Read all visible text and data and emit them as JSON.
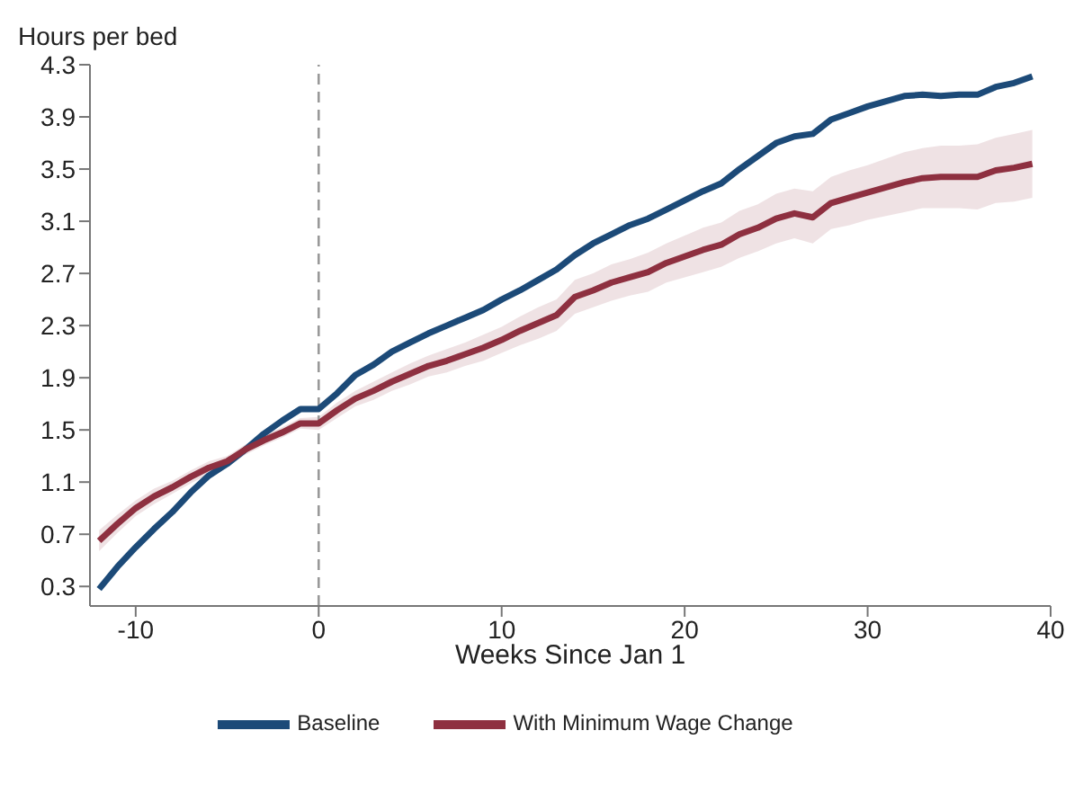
{
  "chart_data": {
    "type": "line",
    "ylabel": "Hours per bed",
    "xlabel": "Weeks Since Jan 1",
    "x": [
      -12,
      -11,
      -10,
      -9,
      -8,
      -7,
      -6,
      -5,
      -4,
      -3,
      -2,
      -1,
      0,
      1,
      2,
      3,
      4,
      5,
      6,
      7,
      8,
      9,
      10,
      11,
      12,
      13,
      14,
      15,
      16,
      17,
      18,
      19,
      20,
      21,
      22,
      23,
      24,
      25,
      26,
      27,
      28,
      29,
      30,
      31,
      32,
      33,
      34,
      35,
      36,
      37,
      38,
      39
    ],
    "series": [
      {
        "name": "Baseline",
        "color": "#1c4a78",
        "values": [
          0.28,
          0.45,
          0.6,
          0.74,
          0.87,
          1.02,
          1.15,
          1.24,
          1.35,
          1.47,
          1.57,
          1.66,
          1.66,
          1.78,
          1.92,
          2.0,
          2.1,
          2.17,
          2.24,
          2.3,
          2.36,
          2.42,
          2.5,
          2.57,
          2.65,
          2.73,
          2.84,
          2.93,
          3.0,
          3.07,
          3.12,
          3.19,
          3.26,
          3.33,
          3.39,
          3.5,
          3.6,
          3.7,
          3.75,
          3.77,
          3.88,
          3.93,
          3.98,
          4.02,
          4.06,
          4.07,
          4.06,
          4.07,
          4.07,
          4.13,
          4.16,
          4.21
        ]
      },
      {
        "name": "With Minimum Wage Change",
        "color": "#8e3040",
        "values": [
          0.65,
          0.78,
          0.9,
          0.99,
          1.06,
          1.14,
          1.21,
          1.26,
          1.35,
          1.42,
          1.48,
          1.55,
          1.55,
          1.65,
          1.74,
          1.8,
          1.87,
          1.93,
          1.99,
          2.03,
          2.08,
          2.13,
          2.19,
          2.26,
          2.32,
          2.38,
          2.52,
          2.57,
          2.63,
          2.67,
          2.71,
          2.78,
          2.83,
          2.88,
          2.92,
          3.0,
          3.05,
          3.12,
          3.16,
          3.13,
          3.24,
          3.28,
          3.32,
          3.36,
          3.4,
          3.43,
          3.44,
          3.44,
          3.44,
          3.49,
          3.51,
          3.54
        ],
        "lower": [
          0.57,
          0.71,
          0.84,
          0.93,
          1.01,
          1.09,
          1.16,
          1.22,
          1.31,
          1.38,
          1.44,
          1.51,
          1.5,
          1.59,
          1.68,
          1.73,
          1.8,
          1.85,
          1.91,
          1.94,
          1.99,
          2.03,
          2.09,
          2.15,
          2.2,
          2.26,
          2.39,
          2.44,
          2.49,
          2.53,
          2.56,
          2.63,
          2.67,
          2.71,
          2.75,
          2.82,
          2.87,
          2.93,
          2.97,
          2.93,
          3.04,
          3.07,
          3.11,
          3.14,
          3.17,
          3.2,
          3.2,
          3.2,
          3.19,
          3.24,
          3.25,
          3.28
        ],
        "upper": [
          0.73,
          0.85,
          0.96,
          1.05,
          1.11,
          1.19,
          1.26,
          1.3,
          1.39,
          1.46,
          1.52,
          1.59,
          1.6,
          1.71,
          1.8,
          1.87,
          1.94,
          2.01,
          2.07,
          2.12,
          2.17,
          2.23,
          2.29,
          2.37,
          2.44,
          2.5,
          2.65,
          2.7,
          2.77,
          2.81,
          2.86,
          2.93,
          2.99,
          3.05,
          3.09,
          3.18,
          3.23,
          3.31,
          3.35,
          3.33,
          3.44,
          3.49,
          3.53,
          3.58,
          3.63,
          3.66,
          3.68,
          3.68,
          3.69,
          3.74,
          3.77,
          3.8
        ]
      }
    ],
    "xlim": [
      -12.5,
      40
    ],
    "xticks": [
      -10,
      0,
      10,
      20,
      30,
      40
    ],
    "ylim": [
      0.15,
      4.3
    ],
    "yticks": [
      0.3,
      0.7,
      1.1,
      1.5,
      1.9,
      2.3,
      2.7,
      3.1,
      3.5,
      3.9,
      4.3
    ],
    "ref_lines": [
      {
        "axis": "x",
        "value": 0,
        "color": "#999999",
        "line_style": "dashed"
      }
    ],
    "grid": false,
    "legend": "bottom",
    "marker": "none",
    "line_style": "solid"
  }
}
